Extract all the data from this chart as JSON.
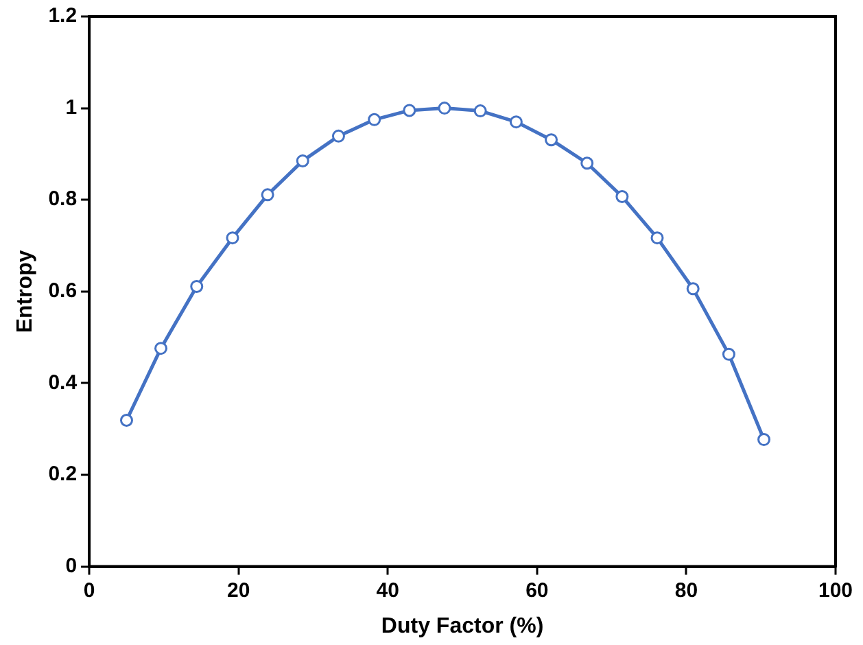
{
  "chart_data": {
    "type": "line",
    "xlabel": "Duty Factor (%)",
    "ylabel": "Entropy",
    "x": [
      5,
      9.6,
      14.4,
      19.2,
      23.9,
      28.6,
      33.4,
      38.2,
      42.9,
      47.6,
      52.4,
      57.2,
      61.9,
      66.7,
      71.4,
      76.1,
      80.9,
      85.7,
      90.4
    ],
    "series": [
      {
        "color": "#4472c4",
        "values": [
          0.319,
          0.476,
          0.611,
          0.717,
          0.811,
          0.885,
          0.939,
          0.975,
          0.995,
          1.0,
          0.994,
          0.97,
          0.931,
          0.88,
          0.807,
          0.717,
          0.606,
          0.463,
          0.277
        ]
      }
    ],
    "xlim": [
      0,
      100
    ],
    "xticks": [
      0,
      20,
      40,
      60,
      80,
      100
    ],
    "ylim": [
      0,
      1.2
    ],
    "yticks": [
      0,
      0.2,
      0.4,
      0.6,
      0.8,
      1,
      1.2
    ],
    "grid": false,
    "legend": false,
    "marker": "circle",
    "line_style": "solid"
  }
}
